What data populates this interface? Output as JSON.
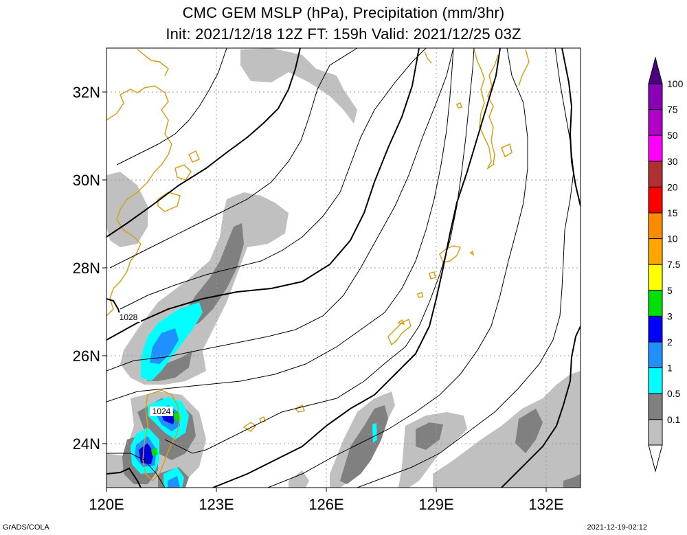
{
  "title": {
    "line1": "CMC GEM MSLP (hPa), Precipitation (mm/3hr)",
    "line2": "Init: 2021/12/18 12Z  FT: 159h  Valid: 2021/12/25 03Z"
  },
  "map": {
    "lat_labels": [
      "32N",
      "30N",
      "28N",
      "26N",
      "24N"
    ],
    "lat_values": [
      32,
      30,
      28,
      26,
      24
    ],
    "lon_labels": [
      "120E",
      "123E",
      "126E",
      "129E",
      "132E"
    ],
    "lon_values": [
      120,
      123,
      126,
      129,
      132
    ],
    "lon_range": [
      120,
      133
    ],
    "lat_range": [
      23,
      33
    ],
    "isobar_labels": [
      "1028",
      "1024"
    ],
    "colors": {
      "coastline": "#d4a017",
      "isobar": "#000000",
      "grid": "#9a9a9a",
      "precip_0_1": "#c0c0c0",
      "precip_0_5": "#808080",
      "precip_1": "#00ffff",
      "precip_2": "#1e90ff",
      "precip_3": "#0000e0",
      "precip_5": "#00e000"
    }
  },
  "colorbar": {
    "labels": [
      "100",
      "75",
      "50",
      "30",
      "20",
      "15",
      "10",
      "7.5",
      "5",
      "3",
      "2",
      "1",
      "0.5",
      "0.1"
    ],
    "colors": [
      "#8a00b8",
      "#b000c8",
      "#ff00ff",
      "#b03030",
      "#ff0000",
      "#ff8c00",
      "#ffa500",
      "#ffff00",
      "#00e000",
      "#0000ff",
      "#1e90ff",
      "#00ffff",
      "#808080",
      "#c0c0c0"
    ],
    "top_arrow_color": "#4b0082"
  },
  "footer": {
    "left": "GrADS/COLA",
    "right": "2021-12-19-02:12"
  }
}
